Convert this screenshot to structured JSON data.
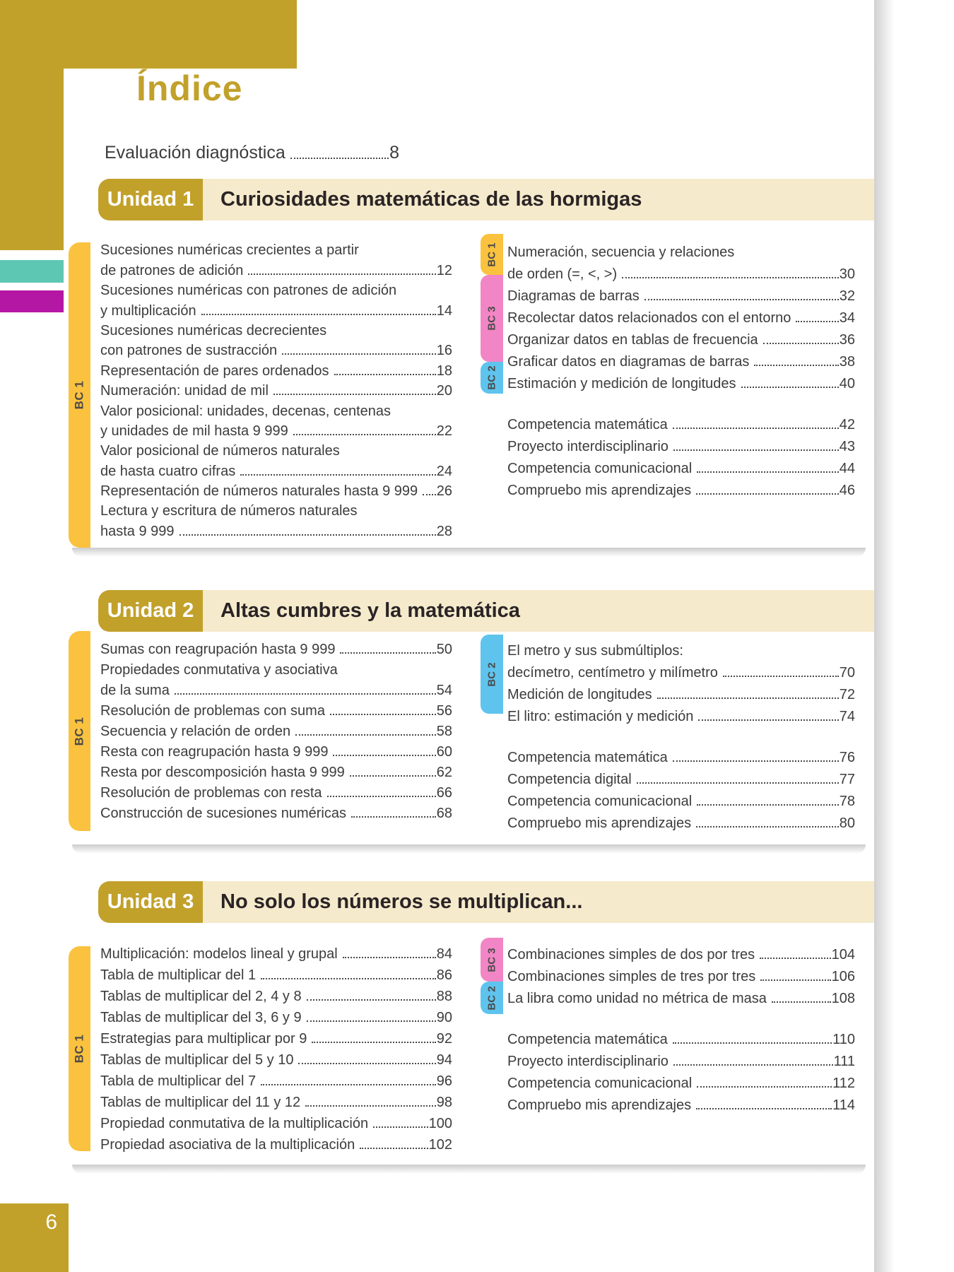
{
  "header": {
    "title": "Índice"
  },
  "intro": {
    "text": "Evaluación diagnóstica",
    "page": "8"
  },
  "footer": {
    "page_number": "6"
  },
  "colors": {
    "gold-dark": "#C2A12B",
    "yellow": "#FAC23E",
    "cream": "#F5EACB",
    "pink": "#F285C5",
    "blue": "#5EC4EE",
    "teal": "#5EC7B4",
    "magenta": "#B517A5",
    "ink": "#2A2426",
    "text": "#3C3C3C"
  },
  "units": [
    {
      "badge": "Unidad 1",
      "title": "Curiosidades matemáticas de las hormigas",
      "left_tab": "BC 1",
      "right_tabs": [
        {
          "label": "BC 1"
        },
        {
          "label": "BC 3"
        },
        {
          "label": "BC 2"
        }
      ],
      "left_rows": [
        {
          "text": "Sucesiones numéricas crecientes a partir"
        },
        {
          "text": "de patrones de adición",
          "page": "12"
        },
        {
          "text": "Sucesiones numéricas con patrones de adición"
        },
        {
          "text": "y multiplicación",
          "page": "14"
        },
        {
          "text": "Sucesiones numéricas decrecientes"
        },
        {
          "text": "con patrones de sustracción",
          "page": "16"
        },
        {
          "text": "Representación de pares ordenados",
          "page": "18"
        },
        {
          "text": "Numeración: unidad de mil",
          "page": "20"
        },
        {
          "text": "Valor posicional: unidades, decenas, centenas"
        },
        {
          "text": "y unidades de mil hasta 9 999",
          "page": "22"
        },
        {
          "text": "Valor posicional de números naturales"
        },
        {
          "text": "de hasta cuatro cifras",
          "page": "24"
        },
        {
          "text": "Representación de números naturales hasta 9 999",
          "page": "26"
        },
        {
          "text": "Lectura y escritura de números naturales"
        },
        {
          "text": "hasta 9 999",
          "page": "28"
        }
      ],
      "right_rows": [
        {
          "text": "Numeración, secuencia y relaciones"
        },
        {
          "text": "de orden (=, <, >)",
          "page": "30"
        },
        {
          "text": "Diagramas de barras",
          "page": "32"
        },
        {
          "text": "Recolectar datos relacionados con el entorno",
          "page": "34"
        },
        {
          "text": "Organizar datos en tablas de frecuencia",
          "page": "36"
        },
        {
          "text": "Graficar datos en diagramas de barras",
          "page": "38"
        },
        {
          "text": "Estimación y medición de longitudes",
          "page": "40"
        },
        {
          "spacer": true
        },
        {
          "text": "Competencia matemática",
          "page": "42"
        },
        {
          "text": "Proyecto interdisciplinario",
          "page": "43"
        },
        {
          "text": "Competencia comunicacional",
          "page": "44"
        },
        {
          "text": "Compruebo mis aprendizajes",
          "page": "46"
        }
      ]
    },
    {
      "badge": "Unidad 2",
      "title": "Altas cumbres y la matemática",
      "left_tab": "BC 1",
      "right_tabs": [
        {
          "label": "BC 2"
        }
      ],
      "left_rows": [
        {
          "text": "Sumas con reagrupación hasta 9 999",
          "page": "50"
        },
        {
          "text": "Propiedades conmutativa y asociativa"
        },
        {
          "text": "de la suma",
          "page": "54"
        },
        {
          "text": "Resolución de problemas con suma",
          "page": "56"
        },
        {
          "text": "Secuencia y relación de orden",
          "page": "58"
        },
        {
          "text": "Resta con reagrupación hasta 9 999",
          "page": "60"
        },
        {
          "text": "Resta por descomposición hasta 9 999",
          "page": "62"
        },
        {
          "text": "Resolución de problemas con resta",
          "page": "66"
        },
        {
          "text": "Construcción de sucesiones numéricas",
          "page": "68"
        }
      ],
      "right_rows": [
        {
          "text": "El metro y sus submúltiplos:"
        },
        {
          "text": "decímetro, centímetro y milímetro",
          "page": "70"
        },
        {
          "text": "Medición de longitudes",
          "page": "72"
        },
        {
          "text": "El litro: estimación y medición",
          "page": "74"
        },
        {
          "spacer": true
        },
        {
          "text": "Competencia matemática",
          "page": "76"
        },
        {
          "text": "Competencia digital",
          "page": "77"
        },
        {
          "text": "Competencia comunicacional",
          "page": "78"
        },
        {
          "text": "Compruebo mis aprendizajes",
          "page": "80"
        }
      ]
    },
    {
      "badge": "Unidad 3",
      "title": "No solo los números se multiplican...",
      "left_tab": "BC 1",
      "right_tabs": [
        {
          "label": "BC 3"
        },
        {
          "label": "BC 2"
        }
      ],
      "left_rows": [
        {
          "text": "Multiplicación: modelos lineal y grupal",
          "page": "84"
        },
        {
          "text": "Tabla de multiplicar del 1",
          "page": "86"
        },
        {
          "text": "Tablas de multiplicar del 2, 4 y 8",
          "page": "88"
        },
        {
          "text": "Tablas de multiplicar del 3, 6 y 9",
          "page": "90"
        },
        {
          "text": "Estrategias para multiplicar por 9",
          "page": "92"
        },
        {
          "text": "Tablas de multiplicar del 5 y 10",
          "page": "94"
        },
        {
          "text": "Tabla de multiplicar del 7",
          "page": "96"
        },
        {
          "text": "Tablas de multiplicar del 11 y 12",
          "page": "98"
        },
        {
          "text": "Propiedad conmutativa de la multiplicación",
          "page": "100"
        },
        {
          "text": "Propiedad asociativa de la multiplicación",
          "page": "102"
        }
      ],
      "right_rows": [
        {
          "text": "Combinaciones simples de dos por tres",
          "page": "104"
        },
        {
          "text": "Combinaciones simples de tres por tres",
          "page": "106"
        },
        {
          "text": "La libra como unidad no métrica de masa",
          "page": "108"
        },
        {
          "spacer": true
        },
        {
          "text": "Competencia matemática",
          "page": "110"
        },
        {
          "text": "Proyecto interdisciplinario",
          "page": "111"
        },
        {
          "text": "Competencia comunicacional",
          "page": "112"
        },
        {
          "text": "Compruebo mis aprendizajes",
          "page": "114"
        }
      ]
    }
  ]
}
